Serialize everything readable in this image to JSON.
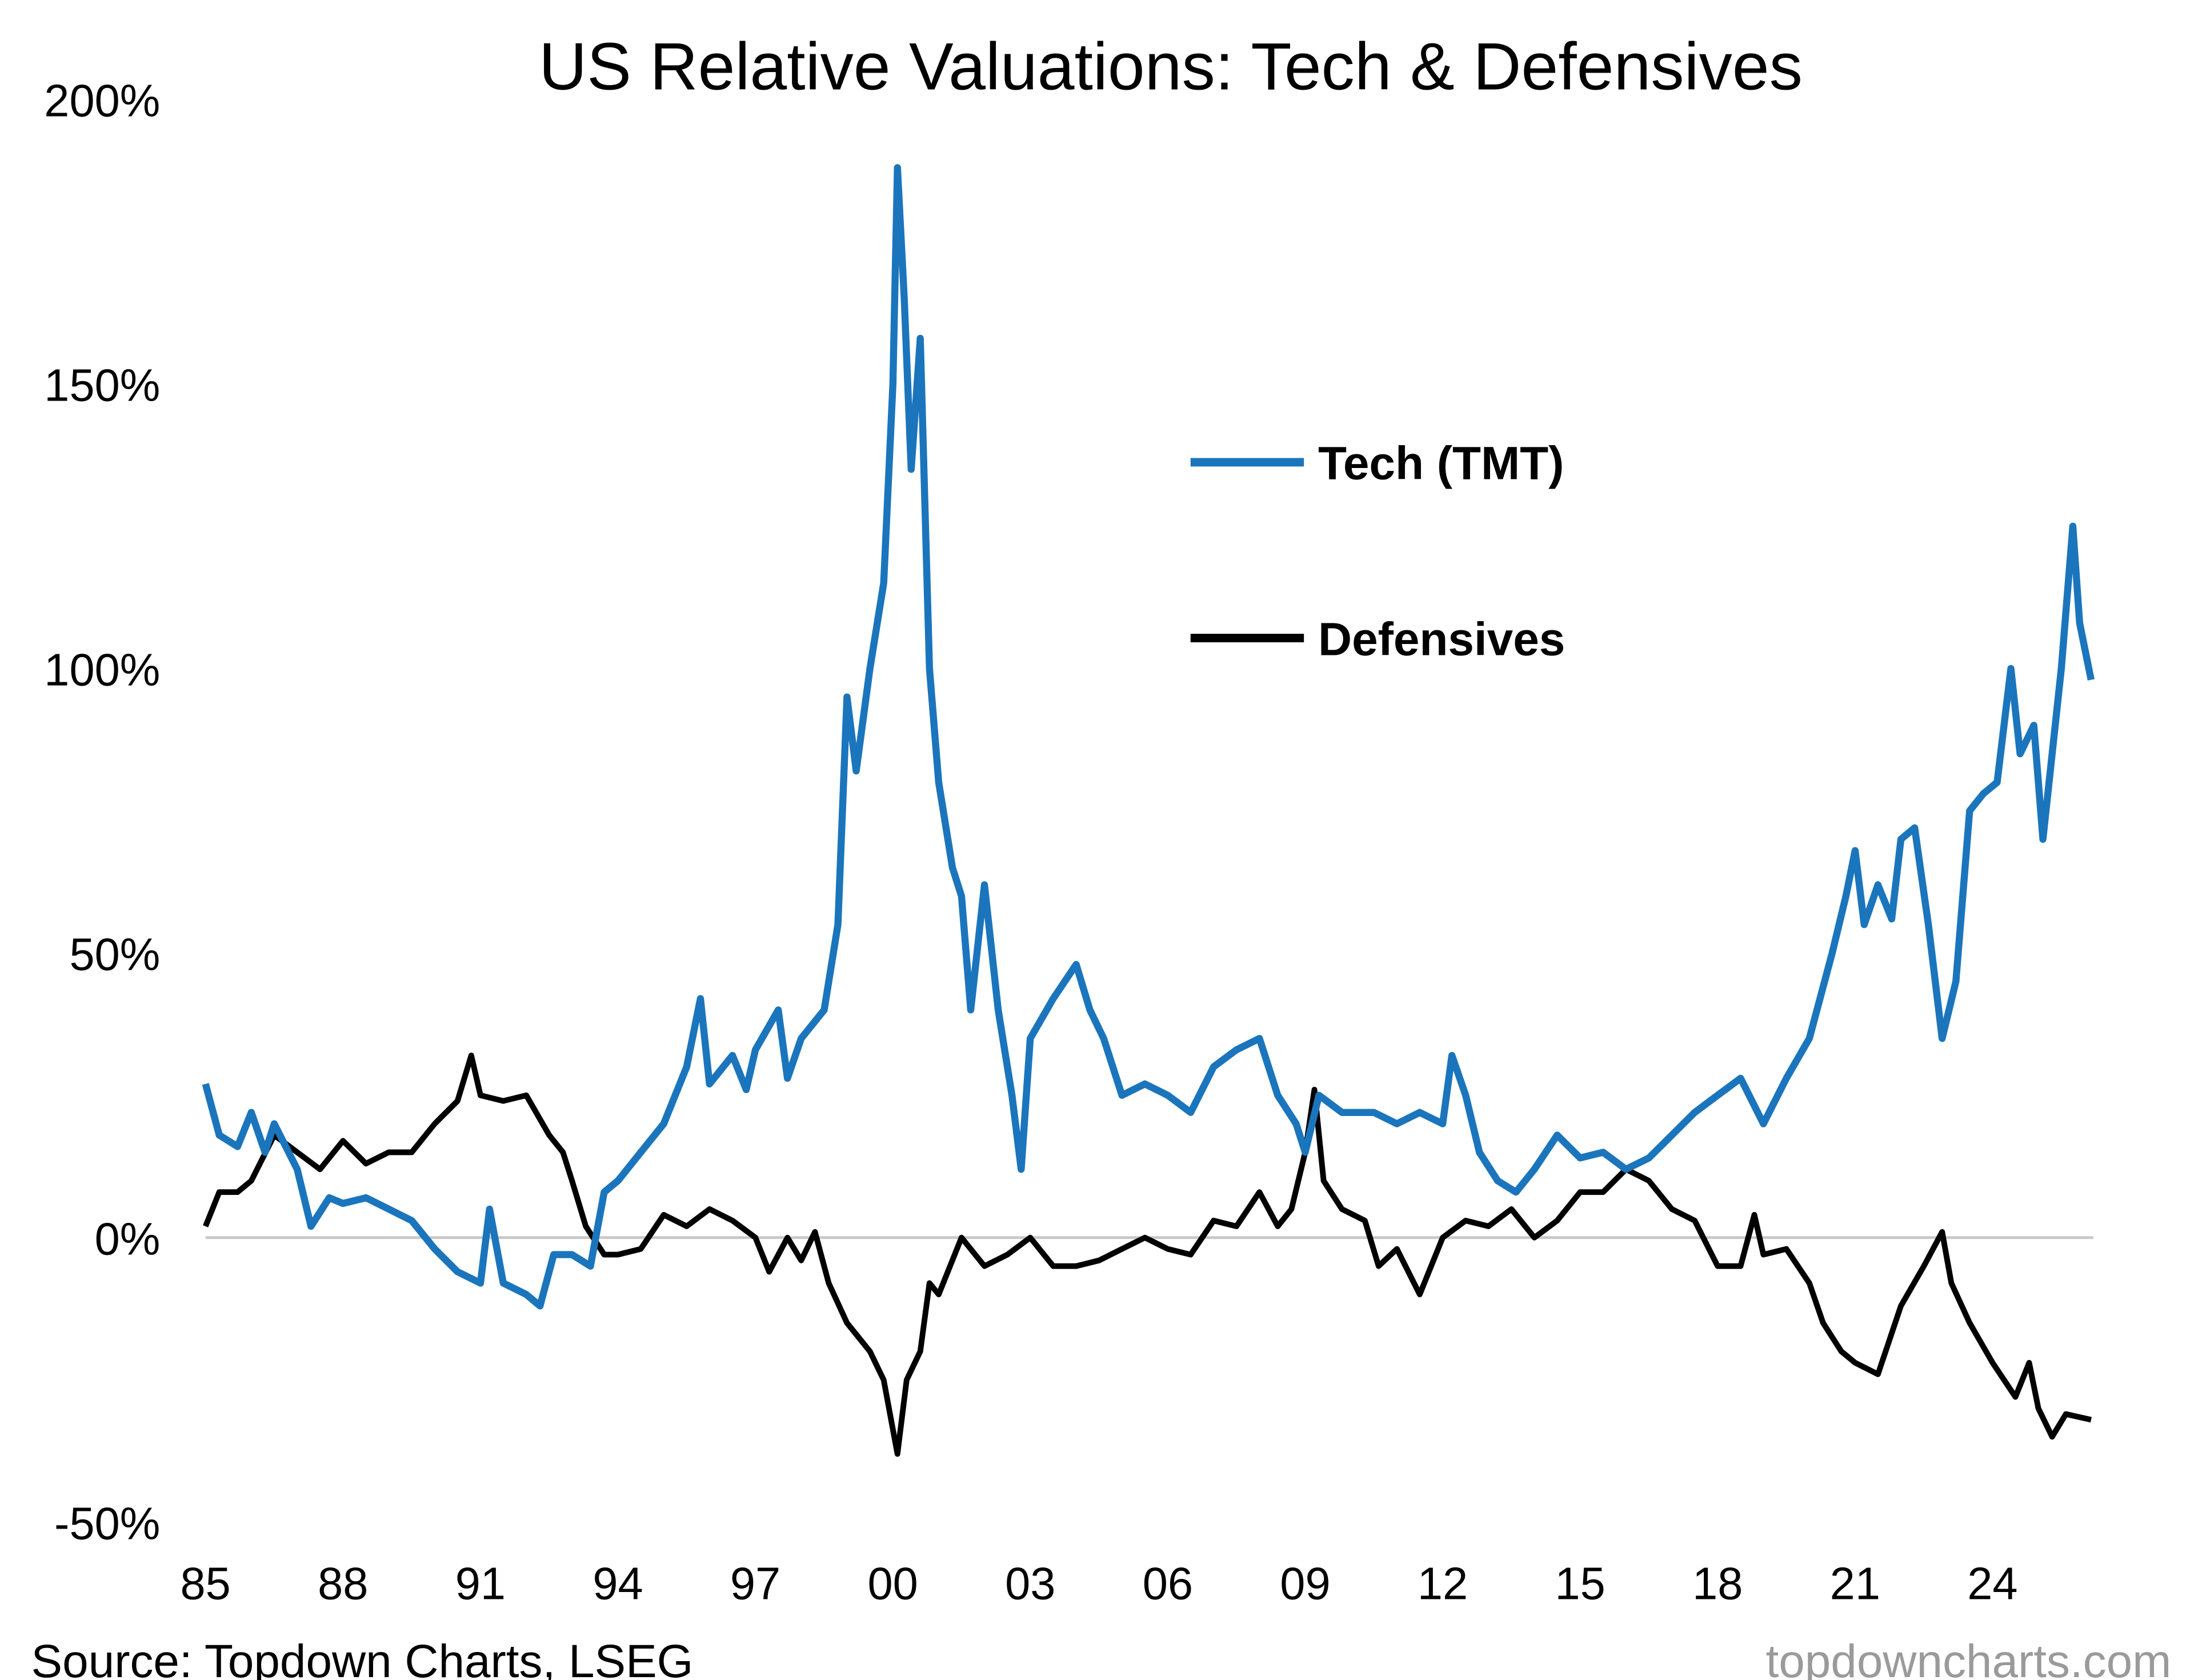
{
  "chart_data": {
    "type": "line",
    "title": "US Relative Valuations: Tech & Defensives",
    "xlabel": "",
    "ylabel": "",
    "xlim": [
      1985,
      2026.2
    ],
    "ylim": [
      -50,
      200
    ],
    "y_ticks": [
      {
        "value": 200,
        "label": "200%"
      },
      {
        "value": 150,
        "label": "150%"
      },
      {
        "value": 100,
        "label": "100%"
      },
      {
        "value": 50,
        "label": "50%"
      },
      {
        "value": 0,
        "label": "0%"
      },
      {
        "value": -50,
        "label": "-50%"
      }
    ],
    "x_ticks": [
      {
        "value": 1985,
        "label": "85"
      },
      {
        "value": 1988,
        "label": "88"
      },
      {
        "value": 1991,
        "label": "91"
      },
      {
        "value": 1994,
        "label": "94"
      },
      {
        "value": 1997,
        "label": "97"
      },
      {
        "value": 2000,
        "label": "00"
      },
      {
        "value": 2003,
        "label": "03"
      },
      {
        "value": 2006,
        "label": "06"
      },
      {
        "value": 2009,
        "label": "09"
      },
      {
        "value": 2012,
        "label": "12"
      },
      {
        "value": 2015,
        "label": "15"
      },
      {
        "value": 2018,
        "label": "18"
      },
      {
        "value": 2021,
        "label": "21"
      },
      {
        "value": 2024,
        "label": "24"
      }
    ],
    "grid": false,
    "zero_line": true,
    "legend_position": "top-center-right",
    "series": [
      {
        "name": "Tech (TMT)",
        "color": "#1b75bc",
        "x": [
          1985.0,
          1985.3,
          1985.7,
          1986.0,
          1986.3,
          1986.5,
          1987.0,
          1987.3,
          1987.7,
          1988.0,
          1988.5,
          1989.0,
          1989.5,
          1990.0,
          1990.5,
          1991.0,
          1991.2,
          1991.5,
          1992.0,
          1992.3,
          1992.6,
          1993.0,
          1993.4,
          1993.7,
          1994.0,
          1994.5,
          1995.0,
          1995.5,
          1995.8,
          1996.0,
          1996.5,
          1996.8,
          1997.0,
          1997.5,
          1997.7,
          1998.0,
          1998.5,
          1998.8,
          1999.0,
          1999.2,
          1999.5,
          1999.8,
          2000.0,
          2000.1,
          2000.25,
          2000.4,
          2000.6,
          2000.8,
          2001.0,
          2001.3,
          2001.5,
          2001.7,
          2002.0,
          2002.3,
          2002.6,
          2002.8,
          2003.0,
          2003.5,
          2004.0,
          2004.3,
          2004.6,
          2005.0,
          2005.5,
          2006.0,
          2006.5,
          2007.0,
          2007.5,
          2008.0,
          2008.4,
          2008.8,
          2009.0,
          2009.3,
          2009.8,
          2010.5,
          2011.0,
          2011.5,
          2012.0,
          2012.2,
          2012.5,
          2012.8,
          2013.2,
          2013.6,
          2014.0,
          2014.5,
          2015.0,
          2015.5,
          2016.0,
          2016.5,
          2017.0,
          2017.5,
          2018.0,
          2018.5,
          2019.0,
          2019.5,
          2020.0,
          2020.5,
          2020.8,
          2021.0,
          2021.2,
          2021.5,
          2021.8,
          2022.0,
          2022.3,
          2022.6,
          2022.9,
          2023.2,
          2023.5,
          2023.8,
          2024.1,
          2024.4,
          2024.6,
          2024.9,
          2025.1,
          2025.5,
          2025.75,
          2025.9,
          2026.15
        ],
        "y": [
          27,
          18,
          16,
          22,
          15,
          20,
          12,
          2,
          7,
          6,
          7,
          5,
          3,
          -2,
          -6,
          -8,
          5,
          -8,
          -10,
          -12,
          -3,
          -3,
          -5,
          8,
          10,
          15,
          20,
          30,
          42,
          27,
          32,
          26,
          33,
          40,
          28,
          35,
          40,
          55,
          95,
          82,
          100,
          115,
          150,
          188,
          165,
          135,
          158,
          100,
          80,
          65,
          60,
          40,
          62,
          40,
          25,
          12,
          35,
          42,
          48,
          40,
          35,
          25,
          27,
          25,
          22,
          30,
          33,
          35,
          25,
          20,
          15,
          25,
          22,
          22,
          20,
          22,
          20,
          32,
          25,
          15,
          10,
          8,
          12,
          18,
          14,
          15,
          12,
          14,
          18,
          22,
          25,
          28,
          20,
          28,
          35,
          50,
          60,
          68,
          55,
          62,
          56,
          70,
          72,
          55,
          35,
          45,
          75,
          78,
          80,
          100,
          85,
          90,
          70,
          100,
          125,
          108,
          98
        ]
      },
      {
        "name": "Defensives",
        "color": "#000000",
        "x": [
          1985.0,
          1985.3,
          1985.7,
          1986.0,
          1986.5,
          1987.0,
          1987.5,
          1988.0,
          1988.5,
          1989.0,
          1989.5,
          1990.0,
          1990.5,
          1990.8,
          1991.0,
          1991.5,
          1992.0,
          1992.5,
          1992.8,
          1993.0,
          1993.3,
          1993.7,
          1994.0,
          1994.5,
          1995.0,
          1995.5,
          1996.0,
          1996.5,
          1997.0,
          1997.3,
          1997.7,
          1998.0,
          1998.3,
          1998.6,
          1999.0,
          1999.5,
          1999.8,
          2000.1,
          2000.3,
          2000.6,
          2000.8,
          2001.0,
          2001.5,
          2002.0,
          2002.5,
          2003.0,
          2003.5,
          2004.0,
          2004.5,
          2005.0,
          2005.5,
          2006.0,
          2006.5,
          2007.0,
          2007.5,
          2008.0,
          2008.4,
          2008.7,
          2009.0,
          2009.2,
          2009.4,
          2009.8,
          2010.3,
          2010.6,
          2011.0,
          2011.5,
          2012.0,
          2012.5,
          2013.0,
          2013.5,
          2014.0,
          2014.5,
          2015.0,
          2015.5,
          2016.0,
          2016.5,
          2017.0,
          2017.5,
          2018.0,
          2018.5,
          2018.8,
          2019.0,
          2019.5,
          2020.0,
          2020.3,
          2020.7,
          2021.0,
          2021.5,
          2022.0,
          2022.5,
          2022.9,
          2023.1,
          2023.5,
          2024.0,
          2024.5,
          2024.8,
          2025.0,
          2025.3,
          2025.6,
          2026.15
        ],
        "y": [
          2,
          8,
          8,
          10,
          18,
          15,
          12,
          17,
          13,
          15,
          15,
          20,
          24,
          32,
          25,
          24,
          25,
          18,
          15,
          10,
          2,
          -3,
          -3,
          -2,
          4,
          2,
          5,
          3,
          0,
          -6,
          0,
          -4,
          1,
          -8,
          -15,
          -20,
          -25,
          -38,
          -25,
          -20,
          -8,
          -10,
          0,
          -5,
          -3,
          0,
          -5,
          -5,
          -4,
          -2,
          0,
          -2,
          -3,
          3,
          2,
          8,
          2,
          5,
          15,
          26,
          10,
          5,
          3,
          -5,
          -2,
          -10,
          0,
          3,
          2,
          5,
          0,
          3,
          8,
          8,
          12,
          10,
          5,
          3,
          -5,
          -5,
          4,
          -3,
          -2,
          -8,
          -15,
          -20,
          -22,
          -24,
          -12,
          -5,
          1,
          -8,
          -15,
          -22,
          -28,
          -22,
          -30,
          -35,
          -31,
          -32
        ]
      }
    ]
  },
  "footer": {
    "source": "Source: Topdown Charts, LSEG",
    "watermark": "topdowncharts.com"
  }
}
